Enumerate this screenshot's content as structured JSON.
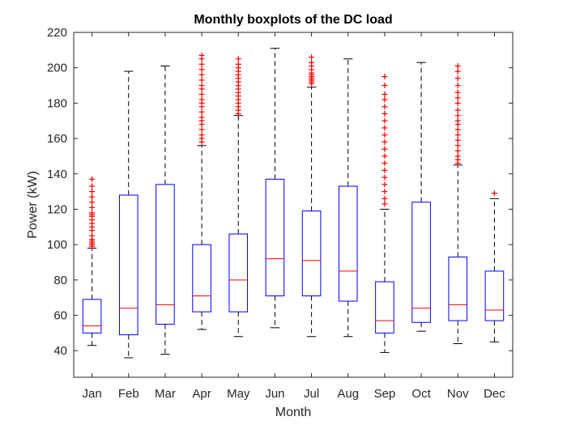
{
  "chart_data": {
    "type": "boxplot",
    "title": "Monthly boxplots of the DC load",
    "xlabel": "Month",
    "ylabel": "Power (kW)",
    "ylim": [
      25,
      220
    ],
    "yticks": [
      40,
      60,
      80,
      100,
      120,
      140,
      160,
      180,
      200,
      220
    ],
    "categories": [
      "Jan",
      "Feb",
      "Mar",
      "Apr",
      "May",
      "Jun",
      "Jul",
      "Aug",
      "Sep",
      "Oct",
      "Nov",
      "Dec"
    ],
    "box_color": "#0000ff",
    "median_color": "#ff0000",
    "whisker_color": "#000000",
    "outlier_color": "#ff0000",
    "boxes": [
      {
        "whisker_low": 43,
        "q1": 50,
        "median": 54,
        "q3": 69,
        "whisker_high": 98,
        "outliers": [
          99,
          100,
          101,
          102,
          103,
          105,
          108,
          110,
          112,
          114,
          116,
          117,
          118,
          121,
          124,
          127,
          130,
          133,
          137
        ]
      },
      {
        "whisker_low": 36,
        "q1": 49,
        "median": 64,
        "q3": 128,
        "whisker_high": 198,
        "outliers": []
      },
      {
        "whisker_low": 38,
        "q1": 55,
        "median": 66,
        "q3": 134,
        "whisker_high": 201,
        "outliers": []
      },
      {
        "whisker_low": 52,
        "q1": 62,
        "median": 71,
        "q3": 100,
        "whisker_high": 156,
        "outliers": [
          158,
          160,
          162,
          165,
          168,
          170,
          172,
          175,
          178,
          180,
          182,
          185,
          188,
          190,
          193,
          196,
          199,
          202,
          205,
          207
        ]
      },
      {
        "whisker_low": 48,
        "q1": 62,
        "median": 80,
        "q3": 106,
        "whisker_high": 173,
        "outliers": [
          174,
          176,
          178,
          180,
          182,
          184,
          186,
          188,
          190,
          192,
          194,
          196,
          198,
          200,
          202,
          205
        ]
      },
      {
        "whisker_low": 53,
        "q1": 71,
        "median": 92,
        "q3": 137,
        "whisker_high": 211,
        "outliers": []
      },
      {
        "whisker_low": 48,
        "q1": 71,
        "median": 91,
        "q3": 119,
        "whisker_high": 189,
        "outliers": [
          191,
          192,
          193,
          194,
          195,
          196,
          197,
          199,
          201,
          203,
          206
        ]
      },
      {
        "whisker_low": 48,
        "q1": 68,
        "median": 85,
        "q3": 133,
        "whisker_high": 205,
        "outliers": []
      },
      {
        "whisker_low": 39,
        "q1": 50,
        "median": 57,
        "q3": 79,
        "whisker_high": 120,
        "outliers": [
          123,
          126,
          130,
          134,
          138,
          142,
          146,
          150,
          154,
          158,
          162,
          166,
          170,
          174,
          178,
          182,
          185,
          190,
          195
        ]
      },
      {
        "whisker_low": 51,
        "q1": 56,
        "median": 64,
        "q3": 124,
        "whisker_high": 203,
        "outliers": []
      },
      {
        "whisker_low": 44,
        "q1": 57,
        "median": 66,
        "q3": 93,
        "whisker_high": 145,
        "outliers": [
          146,
          148,
          150,
          153,
          156,
          159,
          162,
          165,
          168,
          170,
          173,
          176,
          180,
          183,
          186,
          190,
          194,
          198,
          201
        ]
      },
      {
        "whisker_low": 45,
        "q1": 57,
        "median": 63,
        "q3": 85,
        "whisker_high": 126,
        "outliers": [
          129
        ]
      }
    ]
  }
}
